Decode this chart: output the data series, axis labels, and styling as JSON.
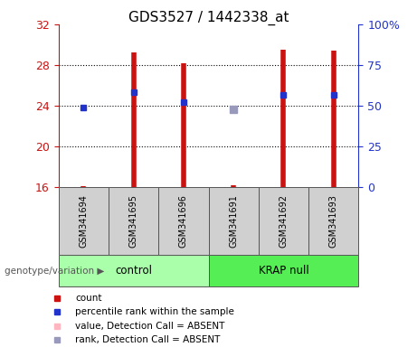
{
  "title": "GDS3527 / 1442338_at",
  "samples": [
    "GSM341694",
    "GSM341695",
    "GSM341696",
    "GSM341691",
    "GSM341692",
    "GSM341693"
  ],
  "ylim_left": [
    16,
    32
  ],
  "ylim_right": [
    0,
    100
  ],
  "yticks_left": [
    16,
    20,
    24,
    28,
    32
  ],
  "yticks_right": [
    0,
    25,
    50,
    75,
    100
  ],
  "ytick_labels_right": [
    "0",
    "25",
    "50",
    "75",
    "100%"
  ],
  "red_bar_base": 16,
  "red_bar_tops": [
    16.1,
    29.2,
    28.2,
    16.2,
    29.5,
    29.4
  ],
  "blue_squares_y": [
    23.8,
    25.3,
    24.4,
    null,
    25.1,
    25.1
  ],
  "blue_squares_present": [
    true,
    true,
    true,
    false,
    true,
    true
  ],
  "absent_rank_y": [
    null,
    null,
    null,
    23.7,
    null,
    null
  ],
  "absent_rank_present": [
    false,
    false,
    false,
    true,
    false,
    false
  ],
  "bar_color": "#cc1111",
  "blue_color": "#2233cc",
  "absent_value_color": "#ffb6c1",
  "absent_rank_color": "#9999bb",
  "left_axis_color": "#cc1111",
  "right_axis_color": "#2233cc",
  "bg_color": "#ffffff",
  "control_group_label": "control",
  "krap_group_label": "KRAP null",
  "genotype_label": "genotype/variation",
  "legend_items": [
    {
      "color": "#cc1111",
      "label": "count"
    },
    {
      "color": "#2233cc",
      "label": "percentile rank within the sample"
    },
    {
      "color": "#ffb6c1",
      "label": "value, Detection Call = ABSENT"
    },
    {
      "color": "#9999bb",
      "label": "rank, Detection Call = ABSENT"
    }
  ]
}
